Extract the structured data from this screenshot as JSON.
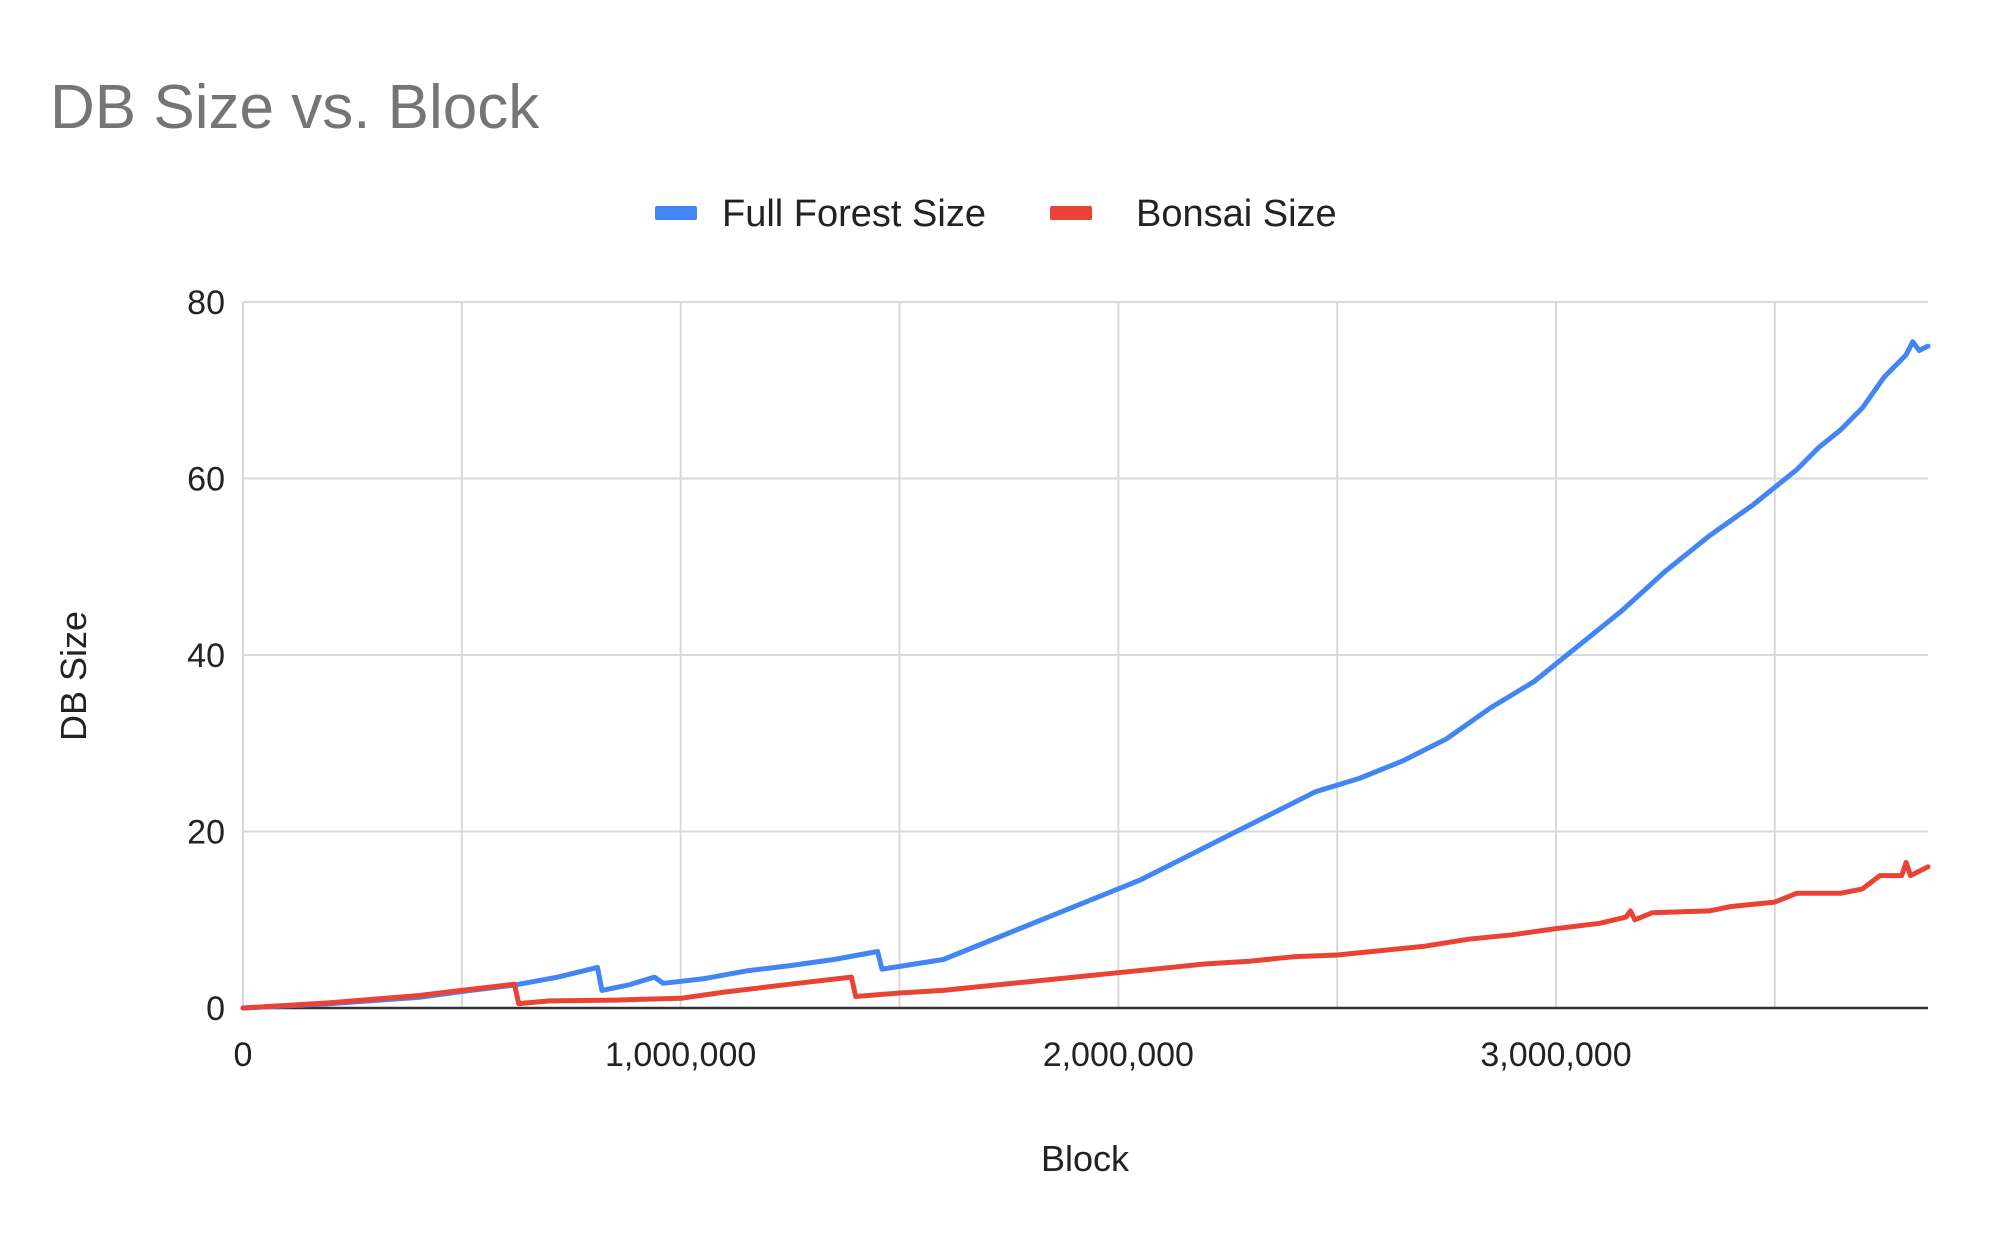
{
  "chart_data": {
    "type": "line",
    "title": "DB Size vs. Block",
    "xlabel": "Block",
    "ylabel": "DB Size",
    "xlim": [
      0,
      3850000
    ],
    "ylim": [
      0,
      80
    ],
    "x_ticks": [
      {
        "value": 0,
        "label": "0"
      },
      {
        "value": 1000000,
        "label": "1,000,000"
      },
      {
        "value": 2000000,
        "label": "2,000,000"
      },
      {
        "value": 3000000,
        "label": "3,000,000"
      }
    ],
    "x_minor_gridlines": [
      500000,
      1500000,
      2500000,
      3500000
    ],
    "y_ticks": [
      {
        "value": 0,
        "label": "0"
      },
      {
        "value": 20,
        "label": "20"
      },
      {
        "value": 40,
        "label": "40"
      },
      {
        "value": 60,
        "label": "60"
      },
      {
        "value": 80,
        "label": "80"
      }
    ],
    "grid": true,
    "legend_position": "top",
    "series": [
      {
        "name": "Full Forest Size",
        "color": "#4285F4",
        "points": [
          [
            0,
            0
          ],
          [
            200000,
            0.5
          ],
          [
            400000,
            1.2
          ],
          [
            520000,
            2.0
          ],
          [
            620000,
            2.6
          ],
          [
            720000,
            3.5
          ],
          [
            810000,
            4.6
          ],
          [
            820000,
            2.0
          ],
          [
            880000,
            2.6
          ],
          [
            940000,
            3.5
          ],
          [
            960000,
            2.8
          ],
          [
            1050000,
            3.3
          ],
          [
            1150000,
            4.2
          ],
          [
            1250000,
            4.8
          ],
          [
            1350000,
            5.5
          ],
          [
            1450000,
            6.4
          ],
          [
            1460000,
            4.4
          ],
          [
            1600000,
            5.5
          ],
          [
            1750000,
            8.5
          ],
          [
            1850000,
            10.5
          ],
          [
            1950000,
            12.5
          ],
          [
            2050000,
            14.5
          ],
          [
            2150000,
            17.0
          ],
          [
            2250000,
            19.5
          ],
          [
            2350000,
            22.0
          ],
          [
            2450000,
            24.5
          ],
          [
            2550000,
            26.0
          ],
          [
            2650000,
            28.0
          ],
          [
            2750000,
            30.5
          ],
          [
            2850000,
            34.0
          ],
          [
            2950000,
            37.0
          ],
          [
            3050000,
            41.0
          ],
          [
            3150000,
            45.0
          ],
          [
            3250000,
            49.5
          ],
          [
            3350000,
            53.5
          ],
          [
            3450000,
            57.0
          ],
          [
            3550000,
            61.0
          ],
          [
            3600000,
            63.5
          ],
          [
            3650000,
            65.5
          ],
          [
            3700000,
            68.0
          ],
          [
            3750000,
            71.5
          ],
          [
            3800000,
            74.0
          ],
          [
            3815000,
            75.5
          ],
          [
            3830000,
            74.5
          ],
          [
            3850000,
            75.0
          ]
        ]
      },
      {
        "name": "Bonsai Size",
        "color": "#EA4335",
        "points": [
          [
            0,
            0
          ],
          [
            200000,
            0.6
          ],
          [
            400000,
            1.4
          ],
          [
            500000,
            2.0
          ],
          [
            620000,
            2.7
          ],
          [
            630000,
            0.5
          ],
          [
            700000,
            0.8
          ],
          [
            850000,
            0.9
          ],
          [
            1000000,
            1.1
          ],
          [
            1100000,
            1.8
          ],
          [
            1250000,
            2.7
          ],
          [
            1390000,
            3.5
          ],
          [
            1400000,
            1.3
          ],
          [
            1500000,
            1.7
          ],
          [
            1600000,
            2.0
          ],
          [
            1700000,
            2.5
          ],
          [
            1800000,
            3.0
          ],
          [
            1900000,
            3.5
          ],
          [
            2000000,
            4.0
          ],
          [
            2100000,
            4.5
          ],
          [
            2200000,
            5.0
          ],
          [
            2300000,
            5.3
          ],
          [
            2400000,
            5.8
          ],
          [
            2500000,
            6.0
          ],
          [
            2600000,
            6.5
          ],
          [
            2700000,
            7.0
          ],
          [
            2800000,
            7.8
          ],
          [
            2900000,
            8.3
          ],
          [
            3000000,
            9.0
          ],
          [
            3100000,
            9.6
          ],
          [
            3160000,
            10.3
          ],
          [
            3170000,
            11.0
          ],
          [
            3180000,
            10.0
          ],
          [
            3220000,
            10.8
          ],
          [
            3350000,
            11.0
          ],
          [
            3400000,
            11.5
          ],
          [
            3500000,
            12.0
          ],
          [
            3550000,
            13.0
          ],
          [
            3650000,
            13.0
          ],
          [
            3700000,
            13.5
          ],
          [
            3740000,
            15.0
          ],
          [
            3790000,
            15.0
          ],
          [
            3800000,
            16.5
          ],
          [
            3810000,
            15.0
          ],
          [
            3850000,
            16.0
          ]
        ]
      }
    ]
  }
}
